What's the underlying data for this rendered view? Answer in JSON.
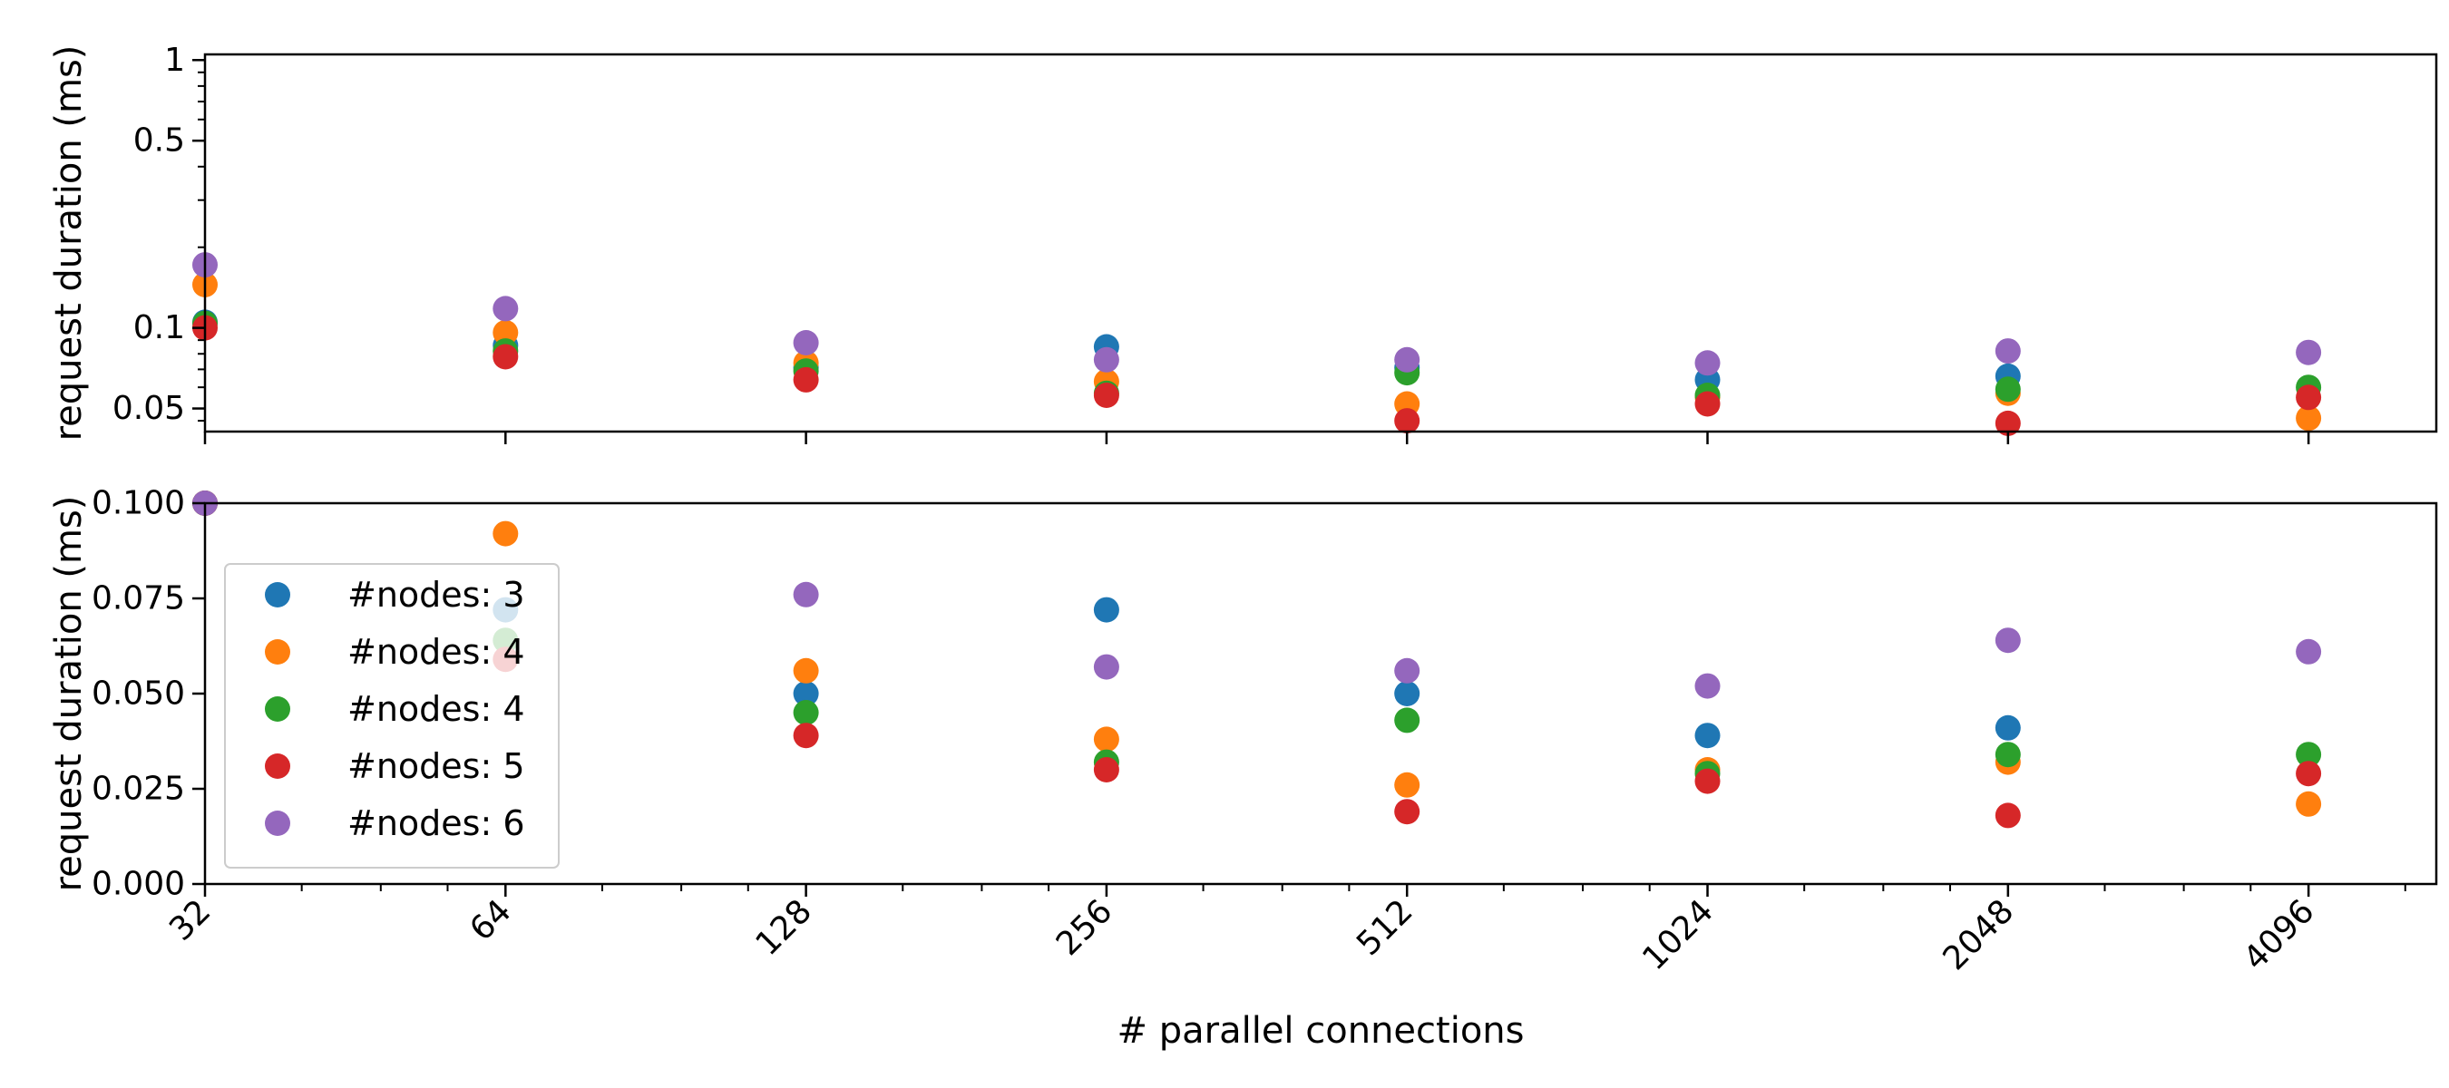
{
  "chart_data": [
    {
      "type": "scatter",
      "panel": "top",
      "yscale": "log",
      "ylabel": "request duration (ms)",
      "xlabel": "",
      "xscale": "log2",
      "xlim": [
        32,
        5500
      ],
      "ylim": [
        0.041,
        1.05
      ],
      "xticks": [
        32,
        64,
        128,
        256,
        512,
        1024,
        2048,
        4096
      ],
      "yticks": [
        1,
        0.5,
        0.1,
        0.05
      ],
      "ytick_labels": [
        "1",
        "0.5",
        "0.1",
        "0.05"
      ],
      "grid": false,
      "legend": false,
      "x": [
        32,
        64,
        128,
        256,
        512,
        1024,
        2048,
        4096
      ],
      "series": [
        {
          "name": "#nodes: 3",
          "color": "#1f77b4",
          "values": [
            0.105,
            0.086,
            0.071,
            0.085,
            0.071,
            0.064,
            0.066,
            null
          ]
        },
        {
          "name": "#nodes: 4",
          "color": "#ff7f0e",
          "values": [
            0.145,
            0.096,
            0.074,
            0.063,
            0.052,
            0.055,
            0.057,
            0.046
          ]
        },
        {
          "name": "#nodes: 4",
          "color": "#2ca02c",
          "values": [
            0.104,
            0.082,
            0.069,
            0.057,
            0.068,
            0.056,
            0.059,
            0.06
          ]
        },
        {
          "name": "#nodes: 5",
          "color": "#d62728",
          "values": [
            0.1,
            0.078,
            0.064,
            0.056,
            0.045,
            0.052,
            0.044,
            0.055
          ]
        },
        {
          "name": "#nodes: 6",
          "color": "#9467bd",
          "values": [
            0.172,
            0.118,
            0.088,
            0.076,
            0.076,
            0.074,
            0.082,
            0.081
          ]
        }
      ]
    },
    {
      "type": "scatter",
      "panel": "bottom",
      "yscale": "linear",
      "ylabel": "request duration (ms)",
      "xlabel": "# parallel connections",
      "xscale": "log2",
      "xlim": [
        32,
        5500
      ],
      "ylim": [
        0.0,
        0.1
      ],
      "xticks": [
        32,
        64,
        128,
        256,
        512,
        1024,
        2048,
        4096
      ],
      "xtick_labels": [
        "32",
        "64",
        "128",
        "256",
        "512",
        "1024",
        "2048",
        "4096"
      ],
      "yticks": [
        0.0,
        0.025,
        0.05,
        0.075,
        0.1
      ],
      "ytick_labels": [
        "0.000",
        "0.025",
        "0.050",
        "0.075",
        "0.100"
      ],
      "grid": false,
      "legend": "lower-left",
      "x": [
        32,
        64,
        128,
        256,
        512,
        1024,
        2048,
        4096
      ],
      "series": [
        {
          "name": "#nodes: 3",
          "color": "#1f77b4",
          "values": [
            0.1,
            0.072,
            0.05,
            0.072,
            0.05,
            0.039,
            0.041,
            null
          ]
        },
        {
          "name": "#nodes: 4",
          "color": "#ff7f0e",
          "values": [
            0.1,
            0.092,
            0.056,
            0.038,
            0.026,
            0.03,
            0.032,
            0.021
          ]
        },
        {
          "name": "#nodes: 4",
          "color": "#2ca02c",
          "values": [
            0.1,
            0.064,
            0.045,
            0.032,
            0.043,
            0.029,
            0.034,
            0.034
          ]
        },
        {
          "name": "#nodes: 5",
          "color": "#d62728",
          "values": [
            0.1,
            0.059,
            0.039,
            0.03,
            0.019,
            0.027,
            0.018,
            0.029
          ]
        },
        {
          "name": "#nodes: 6",
          "color": "#9467bd",
          "values": [
            0.1,
            null,
            0.076,
            0.057,
            0.056,
            0.052,
            0.064,
            0.061
          ]
        }
      ]
    }
  ]
}
